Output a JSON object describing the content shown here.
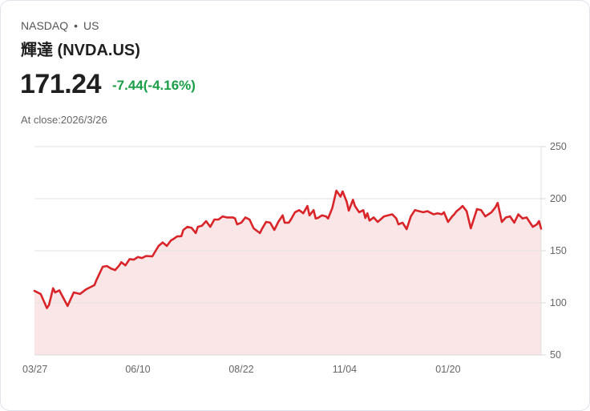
{
  "header": {
    "exchange": "NASDAQ",
    "separator": "•",
    "market": "US",
    "name": "輝達 (NVDA.US)",
    "price": "171.24",
    "change": "-7.44(-4.16%)",
    "close_label": "At close:2026/3/26"
  },
  "colors": {
    "line": "#d9252a",
    "fill": "#fae6e7",
    "change": "#1a9e47",
    "grid": "#e2e2e2"
  },
  "chart_data": {
    "type": "area",
    "title": "",
    "xlabel": "",
    "ylabel": "",
    "ylim": [
      50,
      250
    ],
    "xlim": [
      0,
      245
    ],
    "y_ticks": [
      250,
      200,
      150,
      100,
      50
    ],
    "y_axis_position": "right",
    "grid": true,
    "x_ticks": [
      {
        "day": 0,
        "label": "03/27"
      },
      {
        "day": 50,
        "label": "06/10"
      },
      {
        "day": 100,
        "label": "08/22"
      },
      {
        "day": 150,
        "label": "11/04"
      },
      {
        "day": 200,
        "label": "01/20"
      }
    ],
    "points": [
      [
        0,
        111.5
      ],
      [
        3,
        108.5
      ],
      [
        6,
        95
      ],
      [
        7,
        98
      ],
      [
        9,
        114
      ],
      [
        10,
        110
      ],
      [
        12,
        112
      ],
      [
        16,
        97
      ],
      [
        19,
        110
      ],
      [
        22,
        108.5
      ],
      [
        25,
        113
      ],
      [
        29,
        117
      ],
      [
        30,
        122
      ],
      [
        33,
        134.6
      ],
      [
        35,
        135.4
      ],
      [
        37,
        133
      ],
      [
        39,
        131.5
      ],
      [
        41,
        136
      ],
      [
        42,
        139
      ],
      [
        44,
        136
      ],
      [
        46,
        142
      ],
      [
        48,
        141.5
      ],
      [
        50,
        144
      ],
      [
        52,
        143
      ],
      [
        54,
        145
      ],
      [
        57,
        144.6
      ],
      [
        60,
        154.6
      ],
      [
        62,
        158
      ],
      [
        64,
        154.6
      ],
      [
        66,
        160
      ],
      [
        67,
        161
      ],
      [
        69,
        163.8
      ],
      [
        71,
        164
      ],
      [
        72,
        170
      ],
      [
        74,
        173
      ],
      [
        76,
        172
      ],
      [
        78,
        167
      ],
      [
        79,
        173
      ],
      [
        81,
        174
      ],
      [
        83,
        178.5
      ],
      [
        85,
        173
      ],
      [
        87,
        180
      ],
      [
        89,
        180
      ],
      [
        91,
        183
      ],
      [
        93,
        182
      ],
      [
        96,
        182
      ],
      [
        97,
        181
      ],
      [
        98,
        175.4
      ],
      [
        100,
        177
      ],
      [
        102,
        182
      ],
      [
        104,
        180
      ],
      [
        106,
        171.5
      ],
      [
        109,
        167
      ],
      [
        110,
        171
      ],
      [
        112,
        177.7
      ],
      [
        114,
        177
      ],
      [
        116,
        170
      ],
      [
        118,
        178
      ],
      [
        120,
        184
      ],
      [
        121,
        177
      ],
      [
        123,
        177
      ],
      [
        124,
        180
      ],
      [
        126,
        187
      ],
      [
        128,
        189
      ],
      [
        130,
        186
      ],
      [
        132,
        193
      ],
      [
        133,
        184
      ],
      [
        135,
        189
      ],
      [
        136,
        181
      ],
      [
        137,
        181.5
      ],
      [
        139,
        184
      ],
      [
        141,
        183
      ],
      [
        142,
        181
      ],
      [
        144,
        191
      ],
      [
        146,
        207.7
      ],
      [
        148,
        202
      ],
      [
        149,
        207
      ],
      [
        151,
        197
      ],
      [
        152,
        188.5
      ],
      [
        154,
        199
      ],
      [
        155,
        193
      ],
      [
        157,
        187
      ],
      [
        159,
        189
      ],
      [
        160,
        181.5
      ],
      [
        161,
        186
      ],
      [
        162,
        179
      ],
      [
        164,
        182
      ],
      [
        166,
        177.7
      ],
      [
        169,
        183
      ],
      [
        171,
        184
      ],
      [
        173,
        185
      ],
      [
        175,
        181
      ],
      [
        176,
        175.4
      ],
      [
        178,
        177
      ],
      [
        180,
        170.8
      ],
      [
        182,
        183
      ],
      [
        184,
        189
      ],
      [
        186,
        188
      ],
      [
        188,
        187
      ],
      [
        190,
        188
      ],
      [
        192,
        186
      ],
      [
        193,
        185
      ],
      [
        195,
        186
      ],
      [
        197,
        185
      ],
      [
        198,
        187
      ],
      [
        200,
        177.7
      ],
      [
        202,
        183
      ],
      [
        203,
        185
      ],
      [
        204,
        187.7
      ],
      [
        206,
        191
      ],
      [
        207,
        193
      ],
      [
        209,
        188
      ],
      [
        211,
        171.5
      ],
      [
        214,
        190
      ],
      [
        216,
        189
      ],
      [
        218,
        183
      ],
      [
        221,
        187
      ],
      [
        223,
        192
      ],
      [
        224,
        196
      ],
      [
        226,
        177.7
      ],
      [
        228,
        182
      ],
      [
        230,
        183
      ],
      [
        232,
        177
      ],
      [
        234,
        185
      ],
      [
        236,
        181
      ],
      [
        238,
        182
      ],
      [
        241,
        173
      ],
      [
        243,
        175.4
      ],
      [
        244,
        178.5
      ],
      [
        245,
        171.24
      ]
    ]
  }
}
